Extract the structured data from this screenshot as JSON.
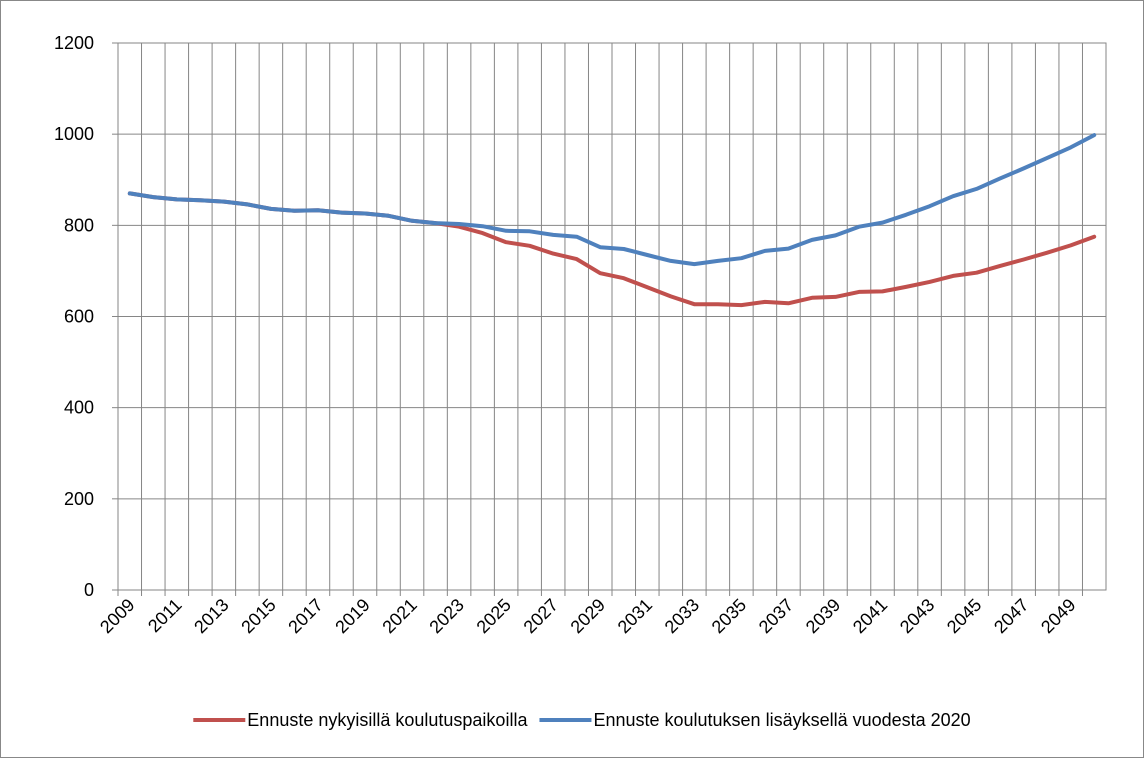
{
  "chart_data": {
    "type": "line",
    "categories": [
      "2009",
      null,
      "2011",
      null,
      "2013",
      null,
      "2015",
      null,
      "2017",
      null,
      "2019",
      null,
      "2021",
      null,
      "2023",
      null,
      "2025",
      null,
      "2027",
      null,
      "2029",
      null,
      "2031",
      null,
      "2033",
      null,
      "2035",
      null,
      "2037",
      null,
      "2039",
      null,
      "2041",
      null,
      "2043",
      null,
      "2045",
      null,
      "2047",
      null,
      "2049",
      null
    ],
    "series": [
      {
        "name": "Ennuste nykyisillä koulutuspaikoilla",
        "color": "#c0504d",
        "values": [
          870,
          862,
          857,
          855,
          852,
          846,
          836,
          832,
          833,
          828,
          826,
          821,
          810,
          805,
          797,
          783,
          763,
          755,
          738,
          726,
          695,
          684,
          664,
          644,
          627,
          627,
          625,
          632,
          629,
          641,
          643,
          654,
          655,
          665,
          676,
          689,
          696,
          711,
          725,
          740,
          756,
          775
        ]
      },
      {
        "name": "Ennuste koulutuksen lisäyksellä vuodesta 2020",
        "color": "#4f81bd",
        "values": [
          870,
          862,
          857,
          855,
          852,
          846,
          836,
          832,
          833,
          828,
          826,
          821,
          810,
          805,
          803,
          798,
          788,
          787,
          779,
          775,
          752,
          748,
          735,
          722,
          715,
          722,
          728,
          744,
          749,
          768,
          778,
          797,
          806,
          823,
          842,
          864,
          880,
          903,
          925,
          948,
          971,
          998
        ]
      }
    ],
    "ylim": [
      0,
      1200
    ],
    "yticks": [
      0,
      200,
      400,
      600,
      800,
      1000,
      1200
    ],
    "grid": true,
    "legend": "bottom"
  }
}
